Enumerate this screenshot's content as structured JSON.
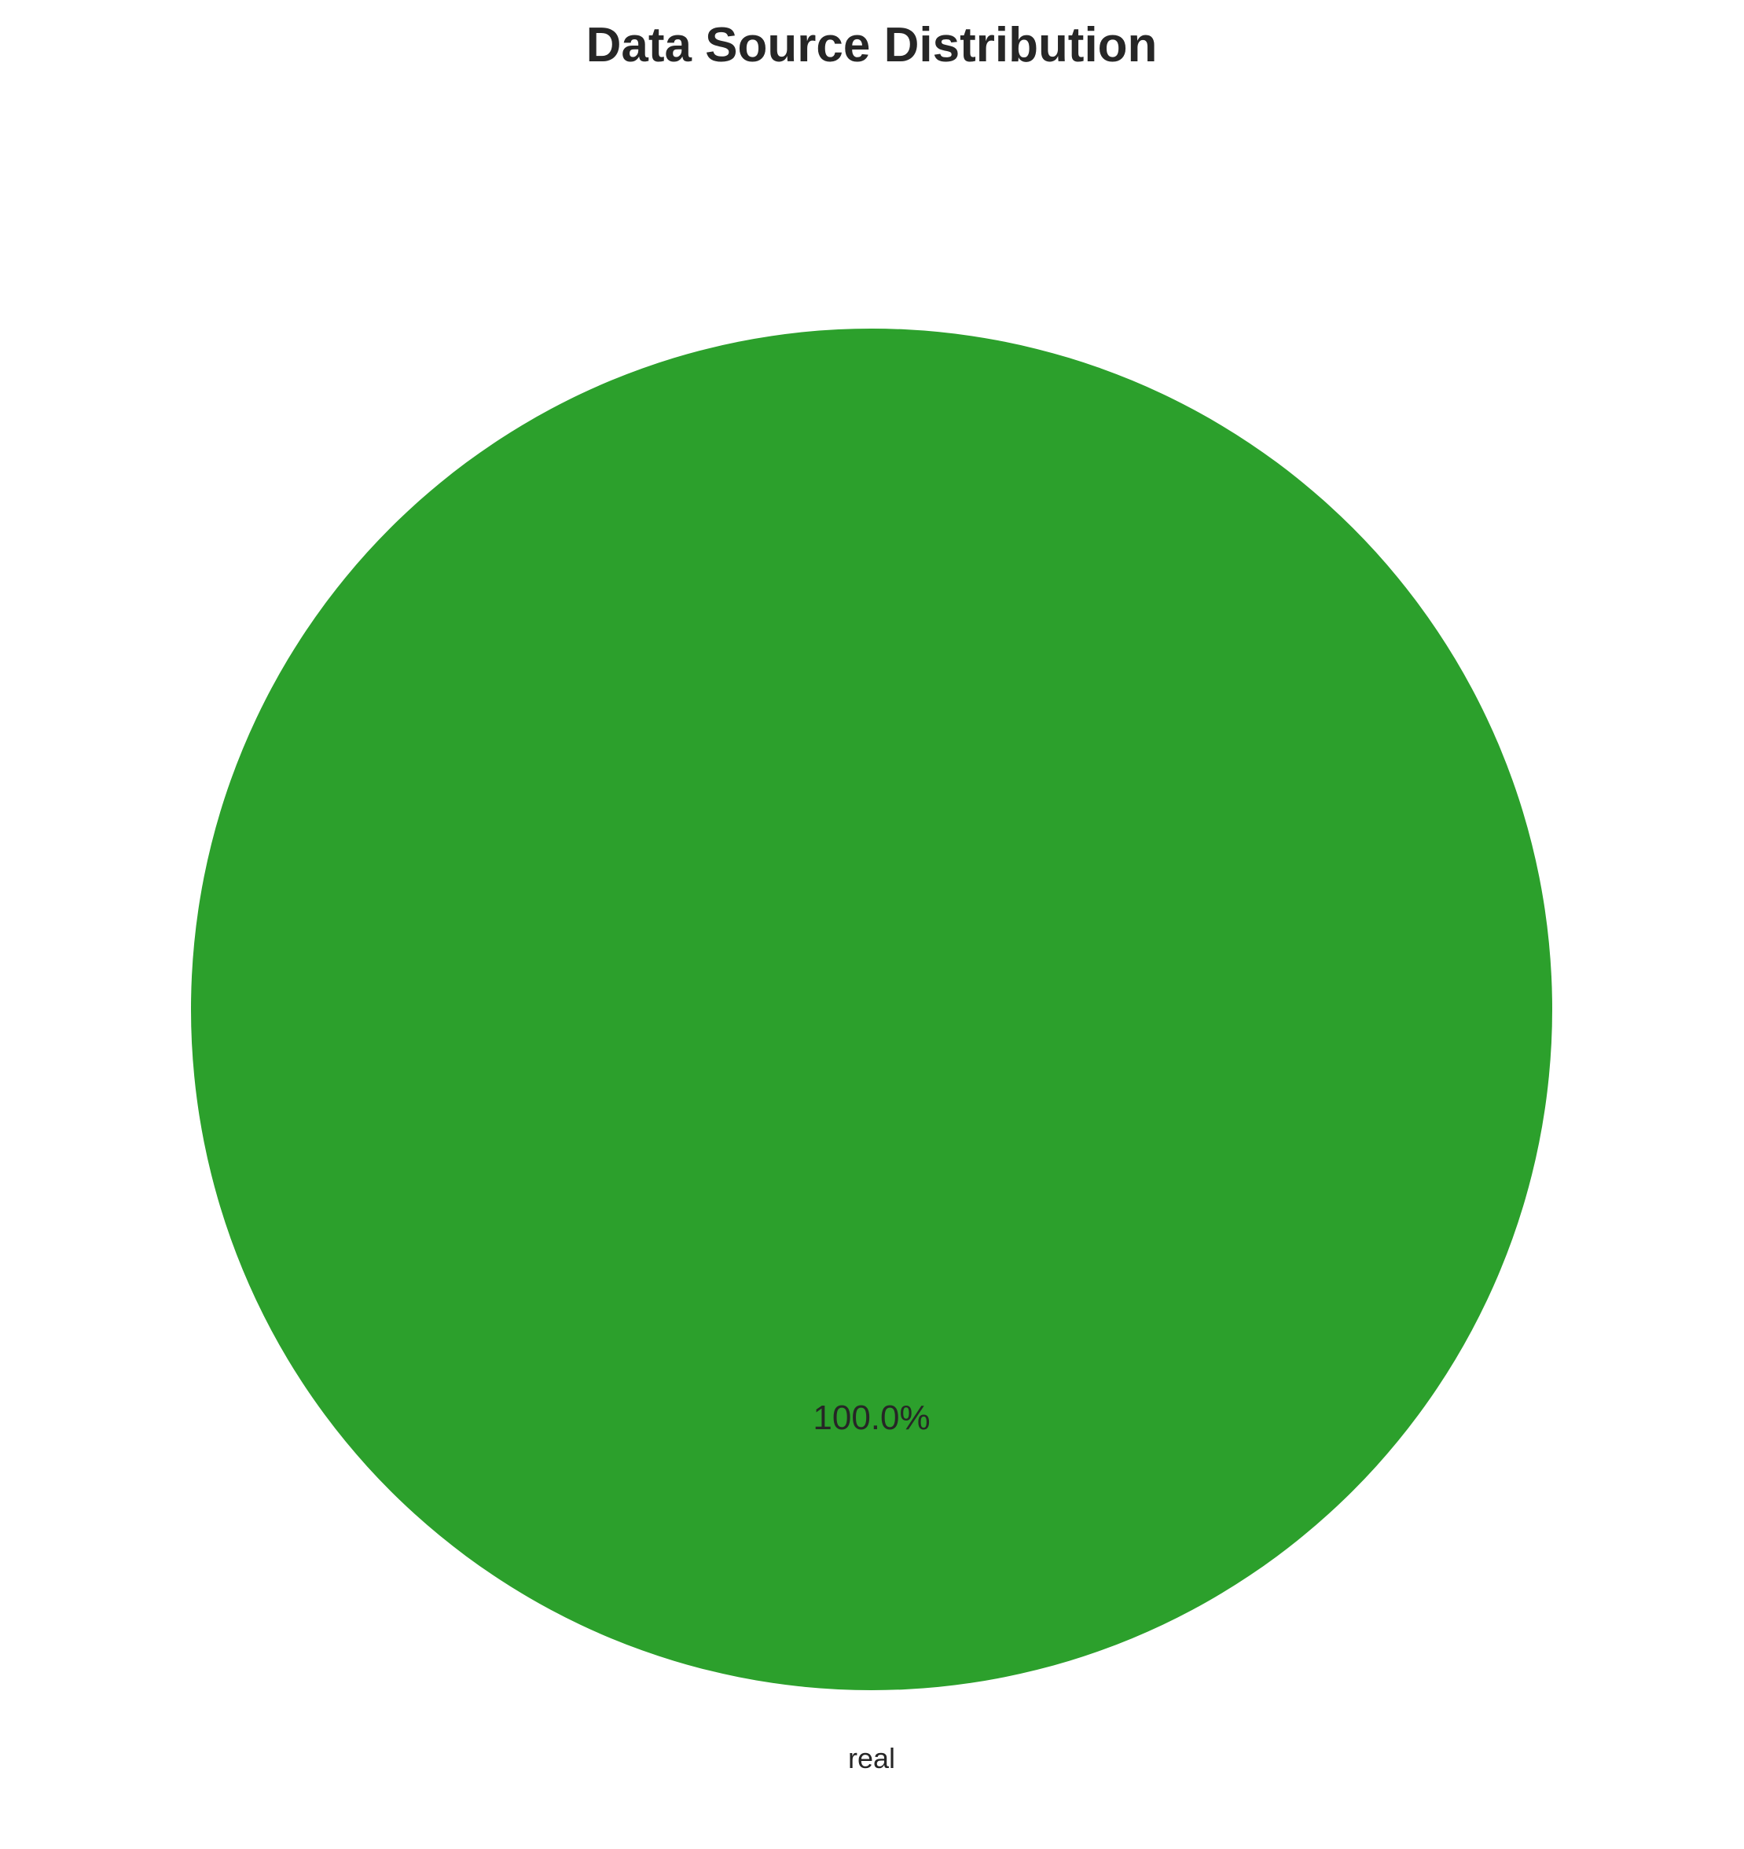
{
  "chart_data": {
    "type": "pie",
    "title": "Data Source Distribution",
    "categories": [
      "real"
    ],
    "values": [
      100.0
    ],
    "percent_labels": [
      "100.0%"
    ],
    "colors": [
      "#2ca02c"
    ],
    "start_angle_deg": 90,
    "direction": "counterclockwise"
  }
}
